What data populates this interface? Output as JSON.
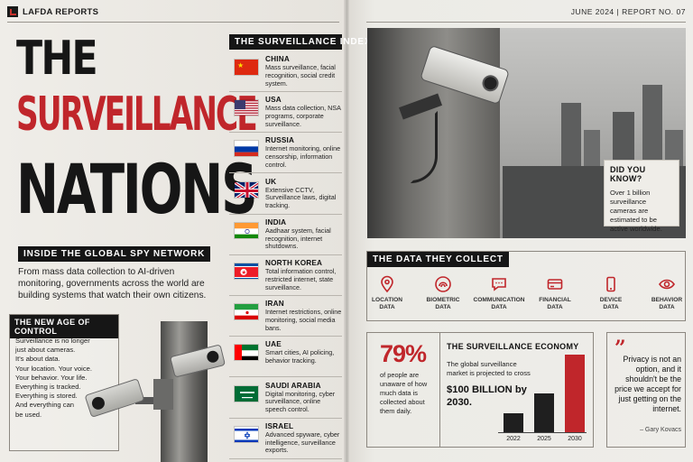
{
  "header": {
    "brand": "LAFDA REPORTS",
    "issue": "JUNE 2024  |  REPORT NO. 07"
  },
  "title": {
    "line1": "THE",
    "line2": "SURVEILLANCE",
    "line3": "NATIONS"
  },
  "subtitle_banner": "INSIDE THE GLOBAL SPY NETWORK",
  "intro": "From mass data collection to AI-driven monitoring, governments across the world are building systems that watch their own citizens.",
  "new_age": {
    "heading": "THE NEW AGE OF CONTROL",
    "lines": [
      "Surveillance is no longer",
      "just about cameras.",
      "It's about data.",
      "Your location. Your voice.",
      "Your behavior. Your life.",
      "Everything is tracked.",
      "Everything is stored.",
      "And everything can",
      "be used."
    ]
  },
  "index": {
    "heading": "THE SURVEILLANCE INDEX",
    "countries": [
      {
        "name": "CHINA",
        "desc": "Mass surveillance, facial recognition, social credit system.",
        "flag": "china"
      },
      {
        "name": "USA",
        "desc": "Mass data collection, NSA programs, corporate surveillance.",
        "flag": "usa"
      },
      {
        "name": "RUSSIA",
        "desc": "Internet monitoring, online censorship, information control.",
        "flag": "russia"
      },
      {
        "name": "UK",
        "desc": "Extensive CCTV, Surveillance laws, digital tracking.",
        "flag": "uk"
      },
      {
        "name": "INDIA",
        "desc": "Aadhaar system, facial recognition, internet shutdowns.",
        "flag": "india"
      },
      {
        "name": "NORTH KOREA",
        "desc": "Total information control, restricted internet, state surveillance.",
        "flag": "northkorea"
      },
      {
        "name": "IRAN",
        "desc": "Internet restrictions, online monitoring, social media bans.",
        "flag": "iran"
      },
      {
        "name": "UAE",
        "desc": "Smart cities, AI policing, behavior tracking.",
        "flag": "uae"
      },
      {
        "name": "SAUDI ARABIA",
        "desc": "Digital monitoring, cyber surveillance, online speech control.",
        "flag": "saudi"
      },
      {
        "name": "ISRAEL",
        "desc": "Advanced spyware, cyber intelligence, surveillance exports.",
        "flag": "israel"
      }
    ]
  },
  "did_you_know": {
    "title": "DID YOU KNOW?",
    "body": "Over 1 billion surveillance cameras are estimated to be active worldwide."
  },
  "collect": {
    "heading": "THE DATA THEY COLLECT",
    "items": [
      {
        "label": "LOCATION\nDATA",
        "icon": "location-pin-icon"
      },
      {
        "label": "BIOMETRIC\nDATA",
        "icon": "fingerprint-icon"
      },
      {
        "label": "COMMUNICATION\nDATA",
        "icon": "chat-bubble-icon"
      },
      {
        "label": "FINANCIAL\nDATA",
        "icon": "credit-card-icon"
      },
      {
        "label": "DEVICE\nDATA",
        "icon": "smartphone-icon"
      },
      {
        "label": "BEHAVIOR\nDATA",
        "icon": "eye-icon"
      }
    ]
  },
  "stat": {
    "value": "79%",
    "text": "of people are unaware of how much data is collected about them daily."
  },
  "economy": {
    "title": "THE SURVEILLANCE ECONOMY",
    "body": "The global surveillance market is projected to cross",
    "big": "$100 BILLION by 2030."
  },
  "chart_data": {
    "type": "bar",
    "categories": [
      "2022",
      "2025",
      "2030"
    ],
    "values": [
      25,
      50,
      100
    ],
    "colors": [
      "#1f1f1f",
      "#1f1f1f",
      "#c0262b"
    ]
  },
  "quote": {
    "text": "Privacy is not an option, and it shouldn't be the price we accept for just getting on the internet.",
    "author": "– Gary Kovacs"
  },
  "colors": {
    "accent": "#c0262b",
    "dark": "#161616"
  }
}
